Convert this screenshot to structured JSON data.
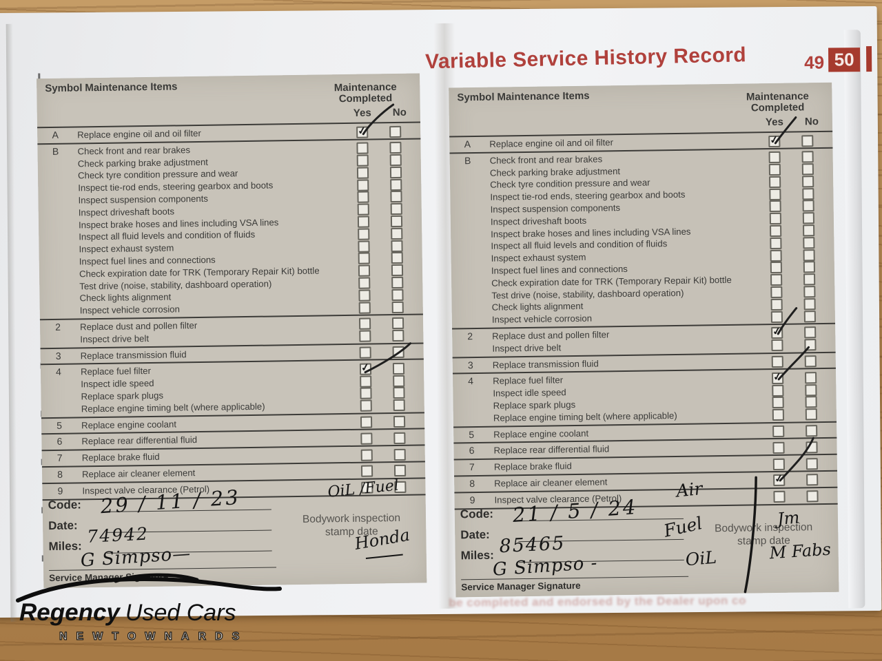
{
  "title": "Variable Service History Record",
  "pages": {
    "left_number": "49",
    "right_number": "50"
  },
  "table_header": {
    "symbol": "Symbol",
    "items": "Maintenance Items",
    "completed_line1": "Maintenance",
    "completed_line2": "Completed",
    "yes": "Yes",
    "no": "No"
  },
  "maintenance_rows": [
    {
      "symbol": "A",
      "lines": [
        "Replace engine oil and oil filter"
      ]
    },
    {
      "symbol": "B",
      "lines": [
        "Check front and rear brakes",
        "Check parking brake adjustment",
        "Check tyre condition pressure and wear",
        "Inspect tie-rod ends, steering gearbox and boots",
        "Inspect suspension components",
        "Inspect driveshaft boots",
        "Inspect brake hoses and lines including VSA lines",
        "Inspect all fluid levels and condition of fluids",
        "Inspect exhaust system",
        "Inspect fuel lines and connections",
        "Check expiration date for TRK (Temporary Repair Kit) bottle",
        "Test drive (noise, stability, dashboard operation)",
        "Check lights alignment",
        "Inspect vehicle corrosion"
      ]
    },
    {
      "symbol": "2",
      "lines": [
        "Replace dust and pollen filter",
        "Inspect drive belt"
      ]
    },
    {
      "symbol": "3",
      "lines": [
        "Replace transmission fluid"
      ]
    },
    {
      "symbol": "4",
      "lines": [
        "Replace fuel filter",
        "Inspect idle speed",
        "Replace spark plugs",
        "Replace engine timing belt (where applicable)"
      ]
    },
    {
      "symbol": "5",
      "lines": [
        "Replace engine coolant"
      ]
    },
    {
      "symbol": "6",
      "lines": [
        "Replace rear differential fluid"
      ]
    },
    {
      "symbol": "7",
      "lines": [
        "Replace brake fluid"
      ]
    },
    {
      "symbol": "8",
      "lines": [
        "Replace air cleaner element"
      ]
    },
    {
      "symbol": "9",
      "lines": [
        "Inspect valve clearance (Petrol)"
      ]
    }
  ],
  "form_labels": {
    "code": "Code:",
    "date": "Date:",
    "miles": "Miles:",
    "service_manager": "Service Manager Signature",
    "stamp_line1": "Bodywork inspection",
    "stamp_line2": "stamp date"
  },
  "left_page": {
    "ticks": [
      {
        "row": 0,
        "line": 0,
        "col": "yes"
      },
      {
        "row": 4,
        "line": 0,
        "col": "yes"
      }
    ],
    "handwriting": {
      "date": "29 / 11 / 23",
      "miles": "74942",
      "signature": "G Simpso—",
      "note1": "OiL /Fuel",
      "note2": "Honda"
    }
  },
  "right_page": {
    "ticks": [
      {
        "row": 0,
        "line": 0,
        "col": "yes"
      },
      {
        "row": 2,
        "line": 0,
        "col": "yes"
      },
      {
        "row": 4,
        "line": 0,
        "col": "yes"
      },
      {
        "row": 8,
        "line": 0,
        "col": "yes"
      }
    ],
    "handwriting": {
      "date": "21 / 5 / 24",
      "miles": "85465",
      "signature": "G Simpso -",
      "note1": "Air",
      "note2": "Fuel",
      "note3": "OiL",
      "note4": "Jm",
      "note5": "M Fabs"
    }
  },
  "footer_logo": {
    "name_bold": "Regency",
    "name_light": "Used Cars",
    "town": "NEWTOWNARDS"
  },
  "bleed_text": "be completed and endorsed by the Dealer upon co",
  "colors": {
    "title_red": "#b0413c",
    "page_tab_red": "#a63a2e",
    "panel_grey": "#c8c3b9",
    "ink": "#161616",
    "wood": "#b0824e"
  }
}
